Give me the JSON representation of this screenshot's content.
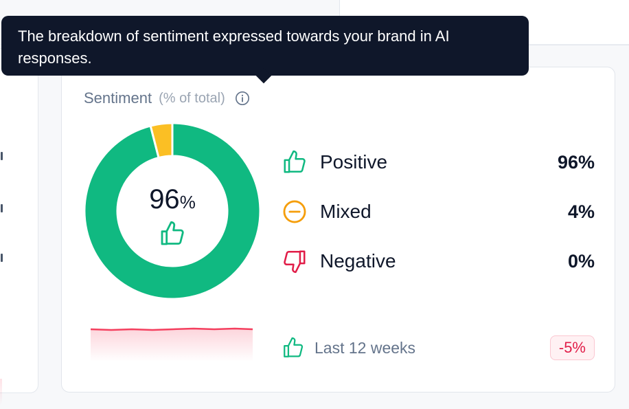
{
  "tooltip": {
    "text": "The breakdown of sentiment expressed towards your brand in AI responses."
  },
  "card": {
    "title": "Sentiment",
    "subtitle": "(% of total)",
    "info_icon": "info-icon"
  },
  "donut": {
    "center_value": "96",
    "center_unit": "%",
    "center_icon": "thumbs-up-icon",
    "segments": [
      {
        "label": "Positive",
        "value": 96,
        "color": "#10b981"
      },
      {
        "label": "Mixed",
        "value": 4,
        "color": "#fbbf24"
      },
      {
        "label": "Negative",
        "value": 0,
        "color": "#e11d48"
      }
    ]
  },
  "legend": [
    {
      "label": "Positive",
      "value": "96%",
      "icon": "thumbs-up-icon",
      "color": "#10b981"
    },
    {
      "label": "Mixed",
      "value": "4%",
      "icon": "minus-circle-icon",
      "color": "#f59e0b"
    },
    {
      "label": "Negative",
      "value": "0%",
      "icon": "thumbs-down-icon",
      "color": "#e11d48"
    }
  ],
  "footer": {
    "label": "Last 12 weeks",
    "icon": "thumbs-up-icon",
    "change": "-5%",
    "change_color": "#e11d48"
  }
}
